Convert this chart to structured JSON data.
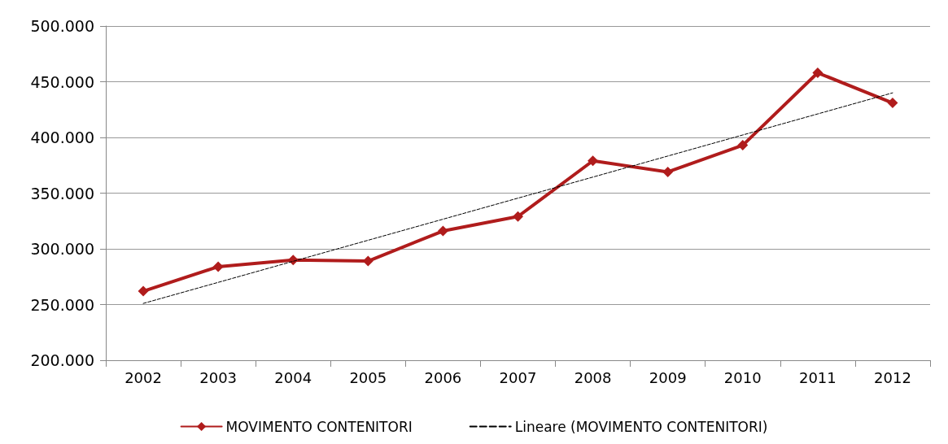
{
  "chart_data": {
    "type": "line",
    "categories": [
      "2002",
      "2003",
      "2004",
      "2005",
      "2006",
      "2007",
      "2008",
      "2009",
      "2010",
      "2011",
      "2012"
    ],
    "series": [
      {
        "name": "MOVIMENTO CONTENITORI",
        "color": "#b01c1c",
        "marker": "diamond",
        "line_style": "solid",
        "values": [
          262000,
          284000,
          290000,
          289000,
          316000,
          329000,
          379000,
          369000,
          393000,
          458000,
          431000
        ]
      },
      {
        "name": "Lineare (MOVIMENTO CONTENITORI)",
        "color": "#000000",
        "marker": "none",
        "line_style": "dashed",
        "values": [
          251000,
          269900,
          288800,
          307700,
          326600,
          345500,
          364400,
          383300,
          402200,
          421100,
          440000
        ]
      }
    ],
    "ylim": [
      200000,
      500000
    ],
    "yticks": [
      {
        "value": 200000,
        "label": "200.000"
      },
      {
        "value": 250000,
        "label": "250.000"
      },
      {
        "value": 300000,
        "label": "300.000"
      },
      {
        "value": 350000,
        "label": "350.000"
      },
      {
        "value": 400000,
        "label": "400.000"
      },
      {
        "value": 450000,
        "label": "450.000"
      },
      {
        "value": 500000,
        "label": "500.000"
      }
    ],
    "grid": "y",
    "legend": "bottom"
  }
}
